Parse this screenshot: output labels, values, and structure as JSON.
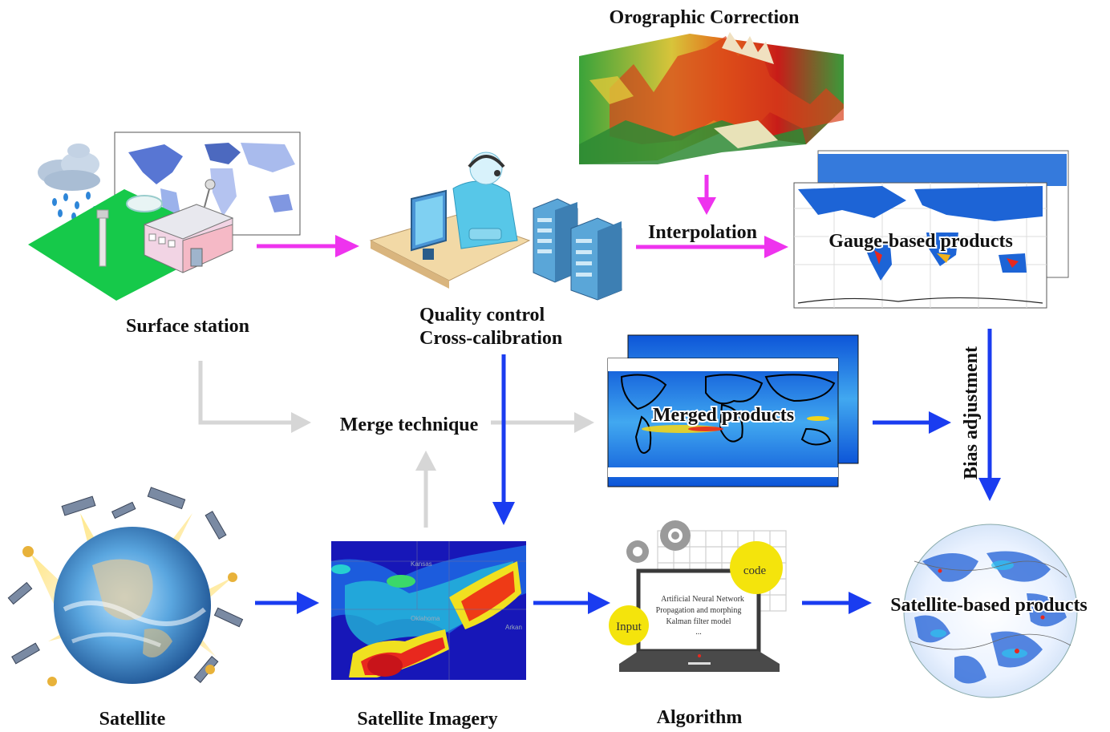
{
  "labels": {
    "orographic": "Orographic Correction",
    "surface_station": "Surface station",
    "quality_control": "Quality control",
    "cross_calibration": "Cross-calibration",
    "interpolation": "Interpolation",
    "gauge_products": "Gauge-based products",
    "merge_technique": "Merge technique",
    "merged_products": "Merged products",
    "bias_adjustment": "Bias adjustment",
    "satellite": "Satellite",
    "satellite_imagery": "Satellite Imagery",
    "algorithm": "Algorithm",
    "satellite_products": "Satellite-based products"
  },
  "algorithm_screen": {
    "line1": "Artificial Neural Network",
    "line2": "Propagation and morphing",
    "line3": "Kalman filter model",
    "line4": "...",
    "input_badge": "Input",
    "code_badge": "code"
  },
  "imagery_map_labels": {
    "label1": "Kansas",
    "label2": "Oklahoma",
    "label3": "Arkan"
  },
  "colors": {
    "magenta_arrow": "#ee33ee",
    "blue_arrow": "#1a3cf0",
    "gray_arrow": "#d0d0d0",
    "badge_yellow": "#f4e40c",
    "surface_green": "#16c94a"
  }
}
